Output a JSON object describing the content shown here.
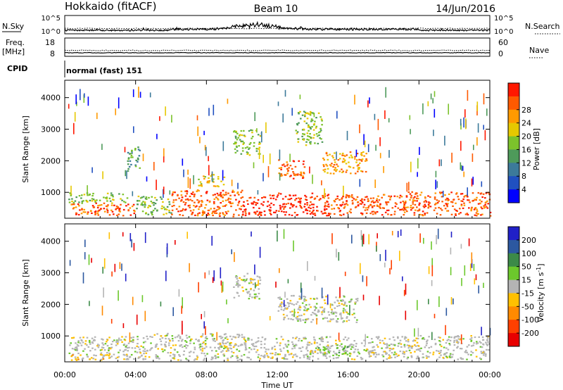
{
  "header": {
    "title": "Hokkaido (fitACF)",
    "beam": "Beam 10",
    "date": "14/Jun/2016"
  },
  "colors": {
    "power_scale": [
      "#0000ff",
      "#2050c0",
      "#3c7a9a",
      "#4e9a5a",
      "#7cc22c",
      "#e6c800",
      "#ff9a00",
      "#ff5a00",
      "#ff1800"
    ],
    "velocity_scale": [
      "#2020c8",
      "#2c58a0",
      "#3c8a48",
      "#6cc82c",
      "#b4b4b4",
      "#ffc000",
      "#ff8a00",
      "#ff4000",
      "#e80000"
    ],
    "nsky_trace": "#000000"
  },
  "top_panels": {
    "nsky": {
      "label": "N.Sky",
      "ticks_left": [
        "10^5",
        "10^0"
      ],
      "right_label": "N.Search",
      "ticks_right": [
        "10^5",
        "10^0"
      ]
    },
    "freq": {
      "label": "Freq.",
      "unit": "[MHz]",
      "ticks_left": [
        "18",
        "8"
      ],
      "right_label": "Nave",
      "ticks_right": [
        "60",
        "0"
      ]
    },
    "cpid": {
      "label": "CPID",
      "value": "normal (fast) 151"
    }
  },
  "chart_data": [
    {
      "type": "heatmap",
      "parameter": "Power",
      "colorbar_label": "Power [dB]",
      "colorbar_ticks": [
        "4",
        "8",
        "12",
        "16",
        "20",
        "24",
        "28"
      ],
      "colorbar_range": [
        0,
        32
      ],
      "ylabel": "Slant Range [km]",
      "yticks": [
        "1000",
        "2000",
        "3000",
        "4000"
      ],
      "ylim": [
        180,
        4550
      ],
      "xlim": [
        "00:00",
        "24:00"
      ],
      "regions": [
        {
          "t": [
            0.2,
            4.0
          ],
          "r": [
            280,
            680
          ],
          "level": 7
        },
        {
          "t": [
            0.2,
            3.5
          ],
          "r": [
            680,
            1000
          ],
          "level": 4
        },
        {
          "t": [
            4.0,
            6.0
          ],
          "r": [
            300,
            900
          ],
          "level": 4
        },
        {
          "t": [
            6.0,
            10.0
          ],
          "r": [
            250,
            1100
          ],
          "level": 7
        },
        {
          "t": [
            7.5,
            9.0
          ],
          "r": [
            1200,
            1600
          ],
          "level": 5
        },
        {
          "t": [
            10.0,
            11.5
          ],
          "r": [
            280,
            900
          ],
          "level": 8
        },
        {
          "t": [
            11.5,
            15.0
          ],
          "r": [
            280,
            1000
          ],
          "level": 8
        },
        {
          "t": [
            12.0,
            13.5
          ],
          "r": [
            1450,
            2050
          ],
          "level": 7
        },
        {
          "t": [
            15.0,
            19.0
          ],
          "r": [
            280,
            950
          ],
          "level": 7
        },
        {
          "t": [
            14.5,
            17.0
          ],
          "r": [
            1600,
            2300
          ],
          "level": 6
        },
        {
          "t": [
            19.0,
            24.0
          ],
          "r": [
            280,
            1050
          ],
          "level": 7
        },
        {
          "t": [
            3.5,
            4.2
          ],
          "r": [
            1700,
            2500
          ],
          "level": 3
        },
        {
          "t": [
            9.5,
            11.0
          ],
          "r": [
            2200,
            3000
          ],
          "level": 4
        },
        {
          "t": [
            13.0,
            14.5
          ],
          "r": [
            2500,
            3600
          ],
          "level": 4
        }
      ]
    },
    {
      "type": "heatmap",
      "parameter": "Velocity",
      "colorbar_label": "Velocity [m s^-1]",
      "colorbar_ticks": [
        "200",
        "100",
        "50",
        "15",
        "-15",
        "-50",
        "-100",
        "-200"
      ],
      "colorbar_range": [
        -300,
        300
      ],
      "ylabel": "Slant Range [km]",
      "yticks": [
        "1000",
        "2000",
        "3000",
        "4000"
      ],
      "ylim": [
        180,
        4550
      ],
      "xlabel": "Time UT",
      "xticks": [
        "00:00",
        "04:00",
        "08:00",
        "12:00",
        "16:00",
        "20:00",
        "00:00"
      ],
      "xlim": [
        "00:00",
        "24:00"
      ],
      "regions": [
        {
          "t": [
            0.2,
            4.0
          ],
          "r": [
            280,
            1000
          ],
          "level": 4
        },
        {
          "t": [
            4.0,
            10.0
          ],
          "r": [
            250,
            1100
          ],
          "level": 4
        },
        {
          "t": [
            10.0,
            19.0
          ],
          "r": [
            280,
            1000
          ],
          "level": 4
        },
        {
          "t": [
            14.0,
            16.0
          ],
          "r": [
            400,
            700
          ],
          "level": 3
        },
        {
          "t": [
            19.0,
            24.0
          ],
          "r": [
            280,
            1050
          ],
          "level": 4
        },
        {
          "t": [
            0.3,
            2.5
          ],
          "r": [
            250,
            450
          ],
          "level": 5
        },
        {
          "t": [
            12.0,
            16.5
          ],
          "r": [
            1450,
            2300
          ],
          "level": 4
        },
        {
          "t": [
            9.5,
            11.0
          ],
          "r": [
            2200,
            3000
          ],
          "level": 4
        }
      ]
    }
  ]
}
